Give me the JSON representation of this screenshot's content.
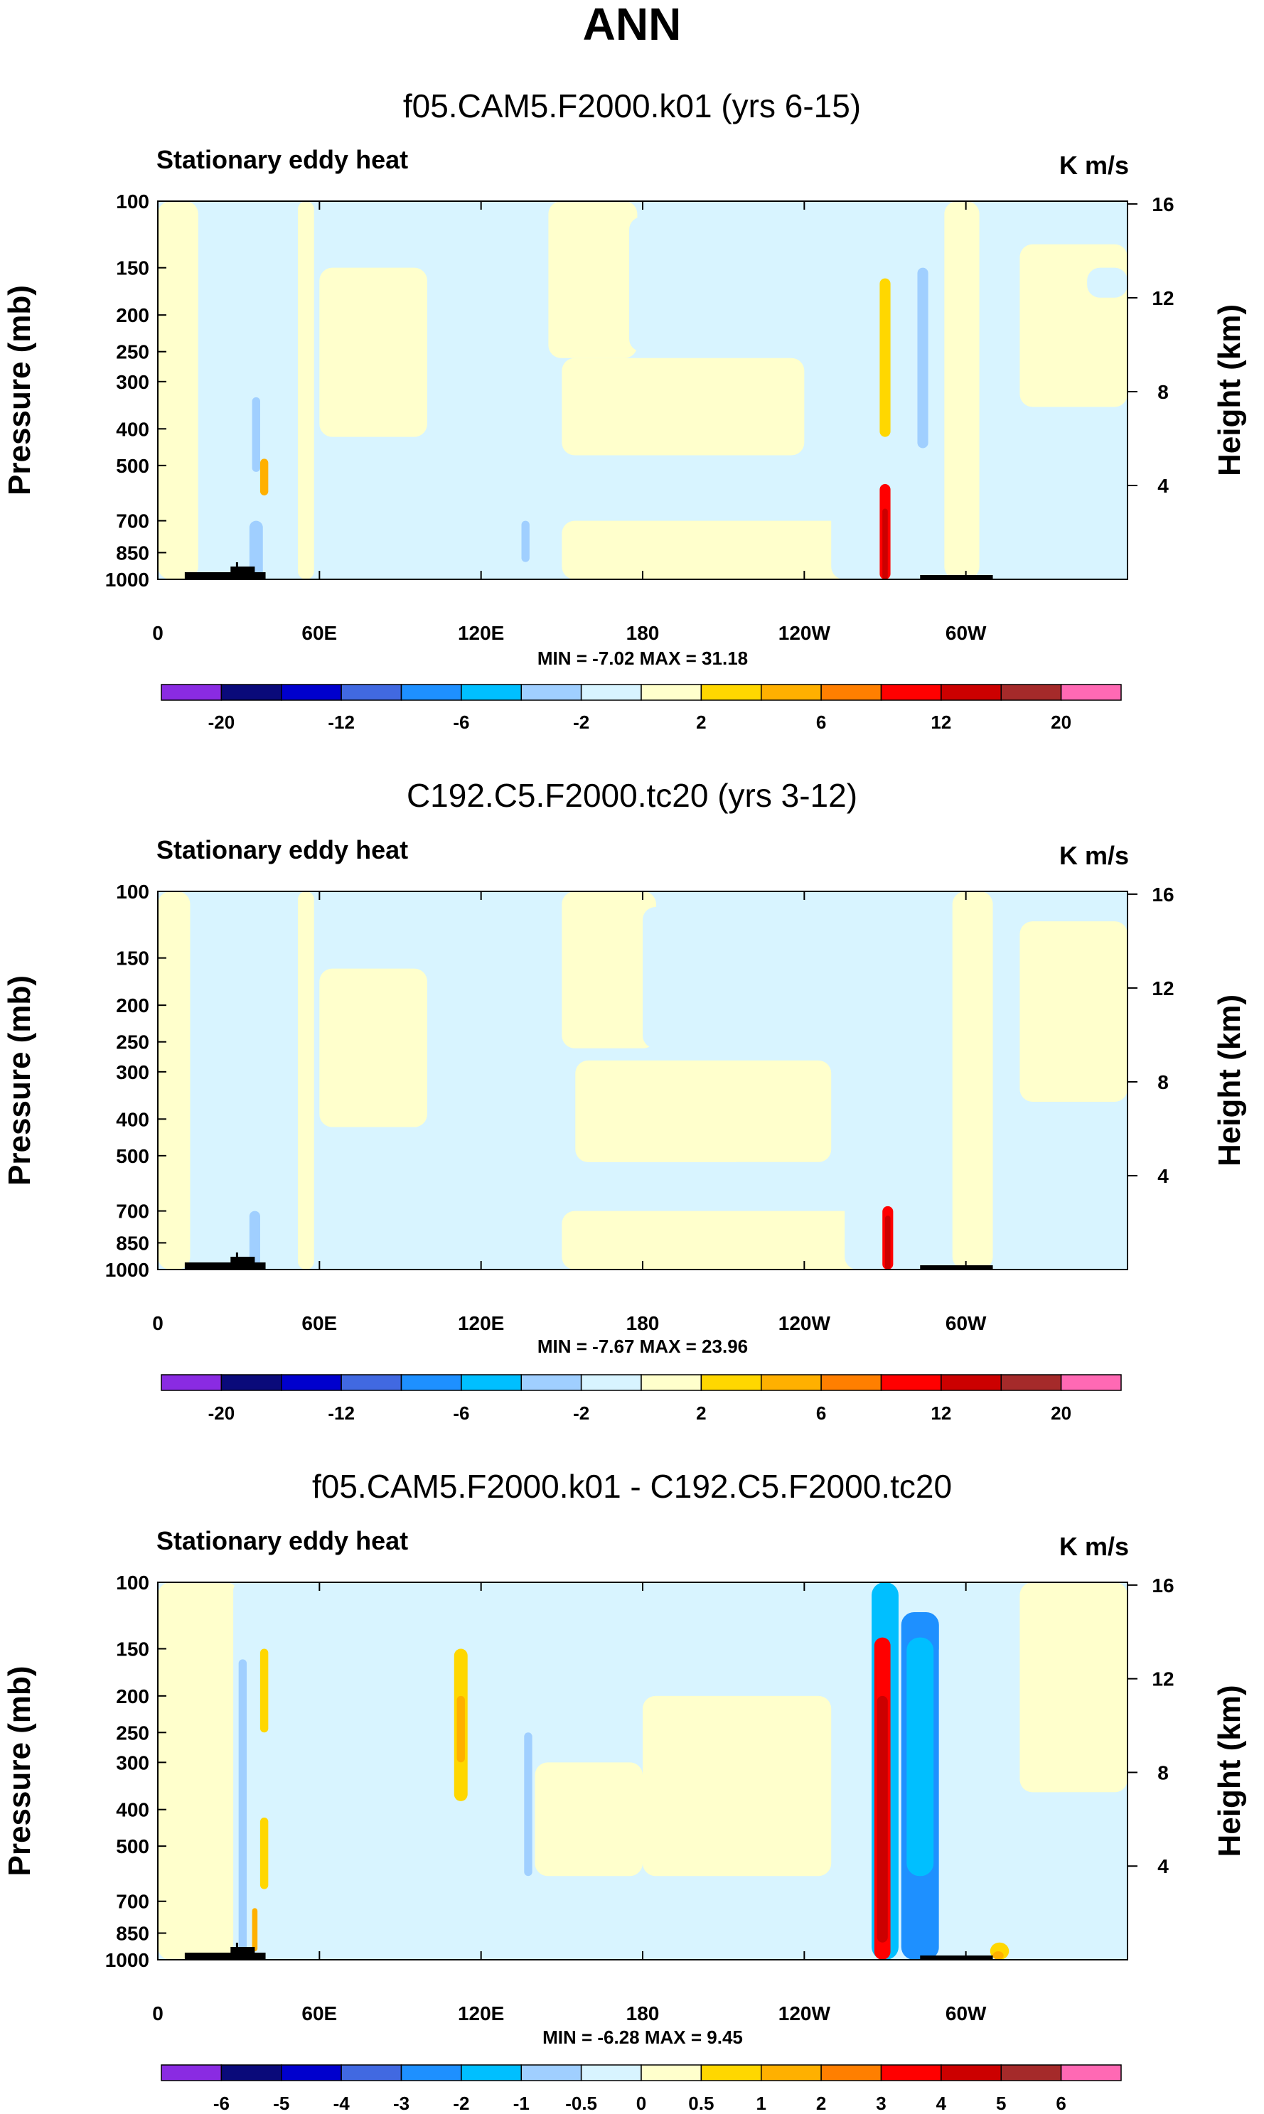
{
  "title": "ANN",
  "colors": {
    "background": "#ffffff",
    "frame": "#000000",
    "topography": "#000000"
  },
  "chart_data": [
    {
      "type": "heatmap",
      "title": "f05.CAM5.F2000.k01 (yrs 6-15)",
      "left_label": "Stationary eddy heat",
      "right_label": "K m/s",
      "ylabel": "Pressure (mb)",
      "ylabel_right": "Height (km)",
      "x_ticks": [
        "0",
        "60E",
        "120E",
        "180",
        "120W",
        "60W"
      ],
      "xlim": [
        0,
        360
      ],
      "x_tick_values": [
        0,
        60,
        120,
        180,
        240,
        300
      ],
      "y_ticks": [
        "100",
        "150",
        "200",
        "250",
        "300",
        "400",
        "500",
        "700",
        "850",
        "1000"
      ],
      "y_tick_values": [
        100,
        150,
        200,
        250,
        300,
        400,
        500,
        700,
        850,
        1000
      ],
      "ylim": [
        1000,
        100
      ],
      "y_right_ticks": [
        "16",
        "12",
        "8",
        "4"
      ],
      "y_right_tick_values": [
        16,
        12,
        8,
        4
      ],
      "min_max": "MIN = -7.02  MAX = 31.18",
      "colorbar": {
        "colors": [
          "#8a2be2",
          "#0a0a7a",
          "#0000cd",
          "#4169e1",
          "#1e90ff",
          "#00bfff",
          "#a0cfff",
          "#d8f4ff",
          "#ffffcc",
          "#ffd700",
          "#ffb000",
          "#ff7f00",
          "#ff0000",
          "#cc0000",
          "#a52a2a",
          "#ff69b4"
        ],
        "labels": [
          "-20",
          "-12",
          "-6",
          "-2",
          "2",
          "6",
          "12",
          "20"
        ]
      }
    },
    {
      "type": "heatmap",
      "title": "C192.C5.F2000.tc20 (yrs 3-12)",
      "left_label": "Stationary eddy heat",
      "right_label": "K m/s",
      "ylabel": "Pressure (mb)",
      "ylabel_right": "Height (km)",
      "x_ticks": [
        "0",
        "60E",
        "120E",
        "180",
        "120W",
        "60W"
      ],
      "xlim": [
        0,
        360
      ],
      "x_tick_values": [
        0,
        60,
        120,
        180,
        240,
        300
      ],
      "y_ticks": [
        "100",
        "150",
        "200",
        "250",
        "300",
        "400",
        "500",
        "700",
        "850",
        "1000"
      ],
      "y_tick_values": [
        100,
        150,
        200,
        250,
        300,
        400,
        500,
        700,
        850,
        1000
      ],
      "ylim": [
        1000,
        100
      ],
      "y_right_ticks": [
        "16",
        "12",
        "8",
        "4"
      ],
      "y_right_tick_values": [
        16,
        12,
        8,
        4
      ],
      "min_max": "MIN = -7.67  MAX = 23.96",
      "colorbar": {
        "colors": [
          "#8a2be2",
          "#0a0a7a",
          "#0000cd",
          "#4169e1",
          "#1e90ff",
          "#00bfff",
          "#a0cfff",
          "#d8f4ff",
          "#ffffcc",
          "#ffd700",
          "#ffb000",
          "#ff7f00",
          "#ff0000",
          "#cc0000",
          "#a52a2a",
          "#ff69b4"
        ],
        "labels": [
          "-20",
          "-12",
          "-6",
          "-2",
          "2",
          "6",
          "12",
          "20"
        ]
      }
    },
    {
      "type": "heatmap",
      "title": "f05.CAM5.F2000.k01 - C192.C5.F2000.tc20",
      "left_label": "Stationary eddy heat",
      "right_label": "K m/s",
      "ylabel": "Pressure (mb)",
      "ylabel_right": "Height (km)",
      "x_ticks": [
        "0",
        "60E",
        "120E",
        "180",
        "120W",
        "60W"
      ],
      "xlim": [
        0,
        360
      ],
      "x_tick_values": [
        0,
        60,
        120,
        180,
        240,
        300
      ],
      "y_ticks": [
        "100",
        "150",
        "200",
        "250",
        "300",
        "400",
        "500",
        "700",
        "850",
        "1000"
      ],
      "y_tick_values": [
        100,
        150,
        200,
        250,
        300,
        400,
        500,
        700,
        850,
        1000
      ],
      "ylim": [
        1000,
        100
      ],
      "y_right_ticks": [
        "16",
        "12",
        "8",
        "4"
      ],
      "y_right_tick_values": [
        16,
        12,
        8,
        4
      ],
      "min_max": "MIN = -6.28  MAX = 9.45",
      "colorbar": {
        "colors": [
          "#8a2be2",
          "#0a0a7a",
          "#0000cd",
          "#4169e1",
          "#1e90ff",
          "#00bfff",
          "#a0cfff",
          "#d8f4ff",
          "#ffffcc",
          "#ffd700",
          "#ffb000",
          "#ff7f00",
          "#ff0000",
          "#cc0000",
          "#a52a2a",
          "#ff69b4"
        ],
        "labels": [
          "-6",
          "-5",
          "-4",
          "-3",
          "-2",
          "-1",
          "-0.5",
          "0",
          "0.5",
          "1",
          "2",
          "3",
          "4",
          "5",
          "6"
        ]
      }
    }
  ]
}
